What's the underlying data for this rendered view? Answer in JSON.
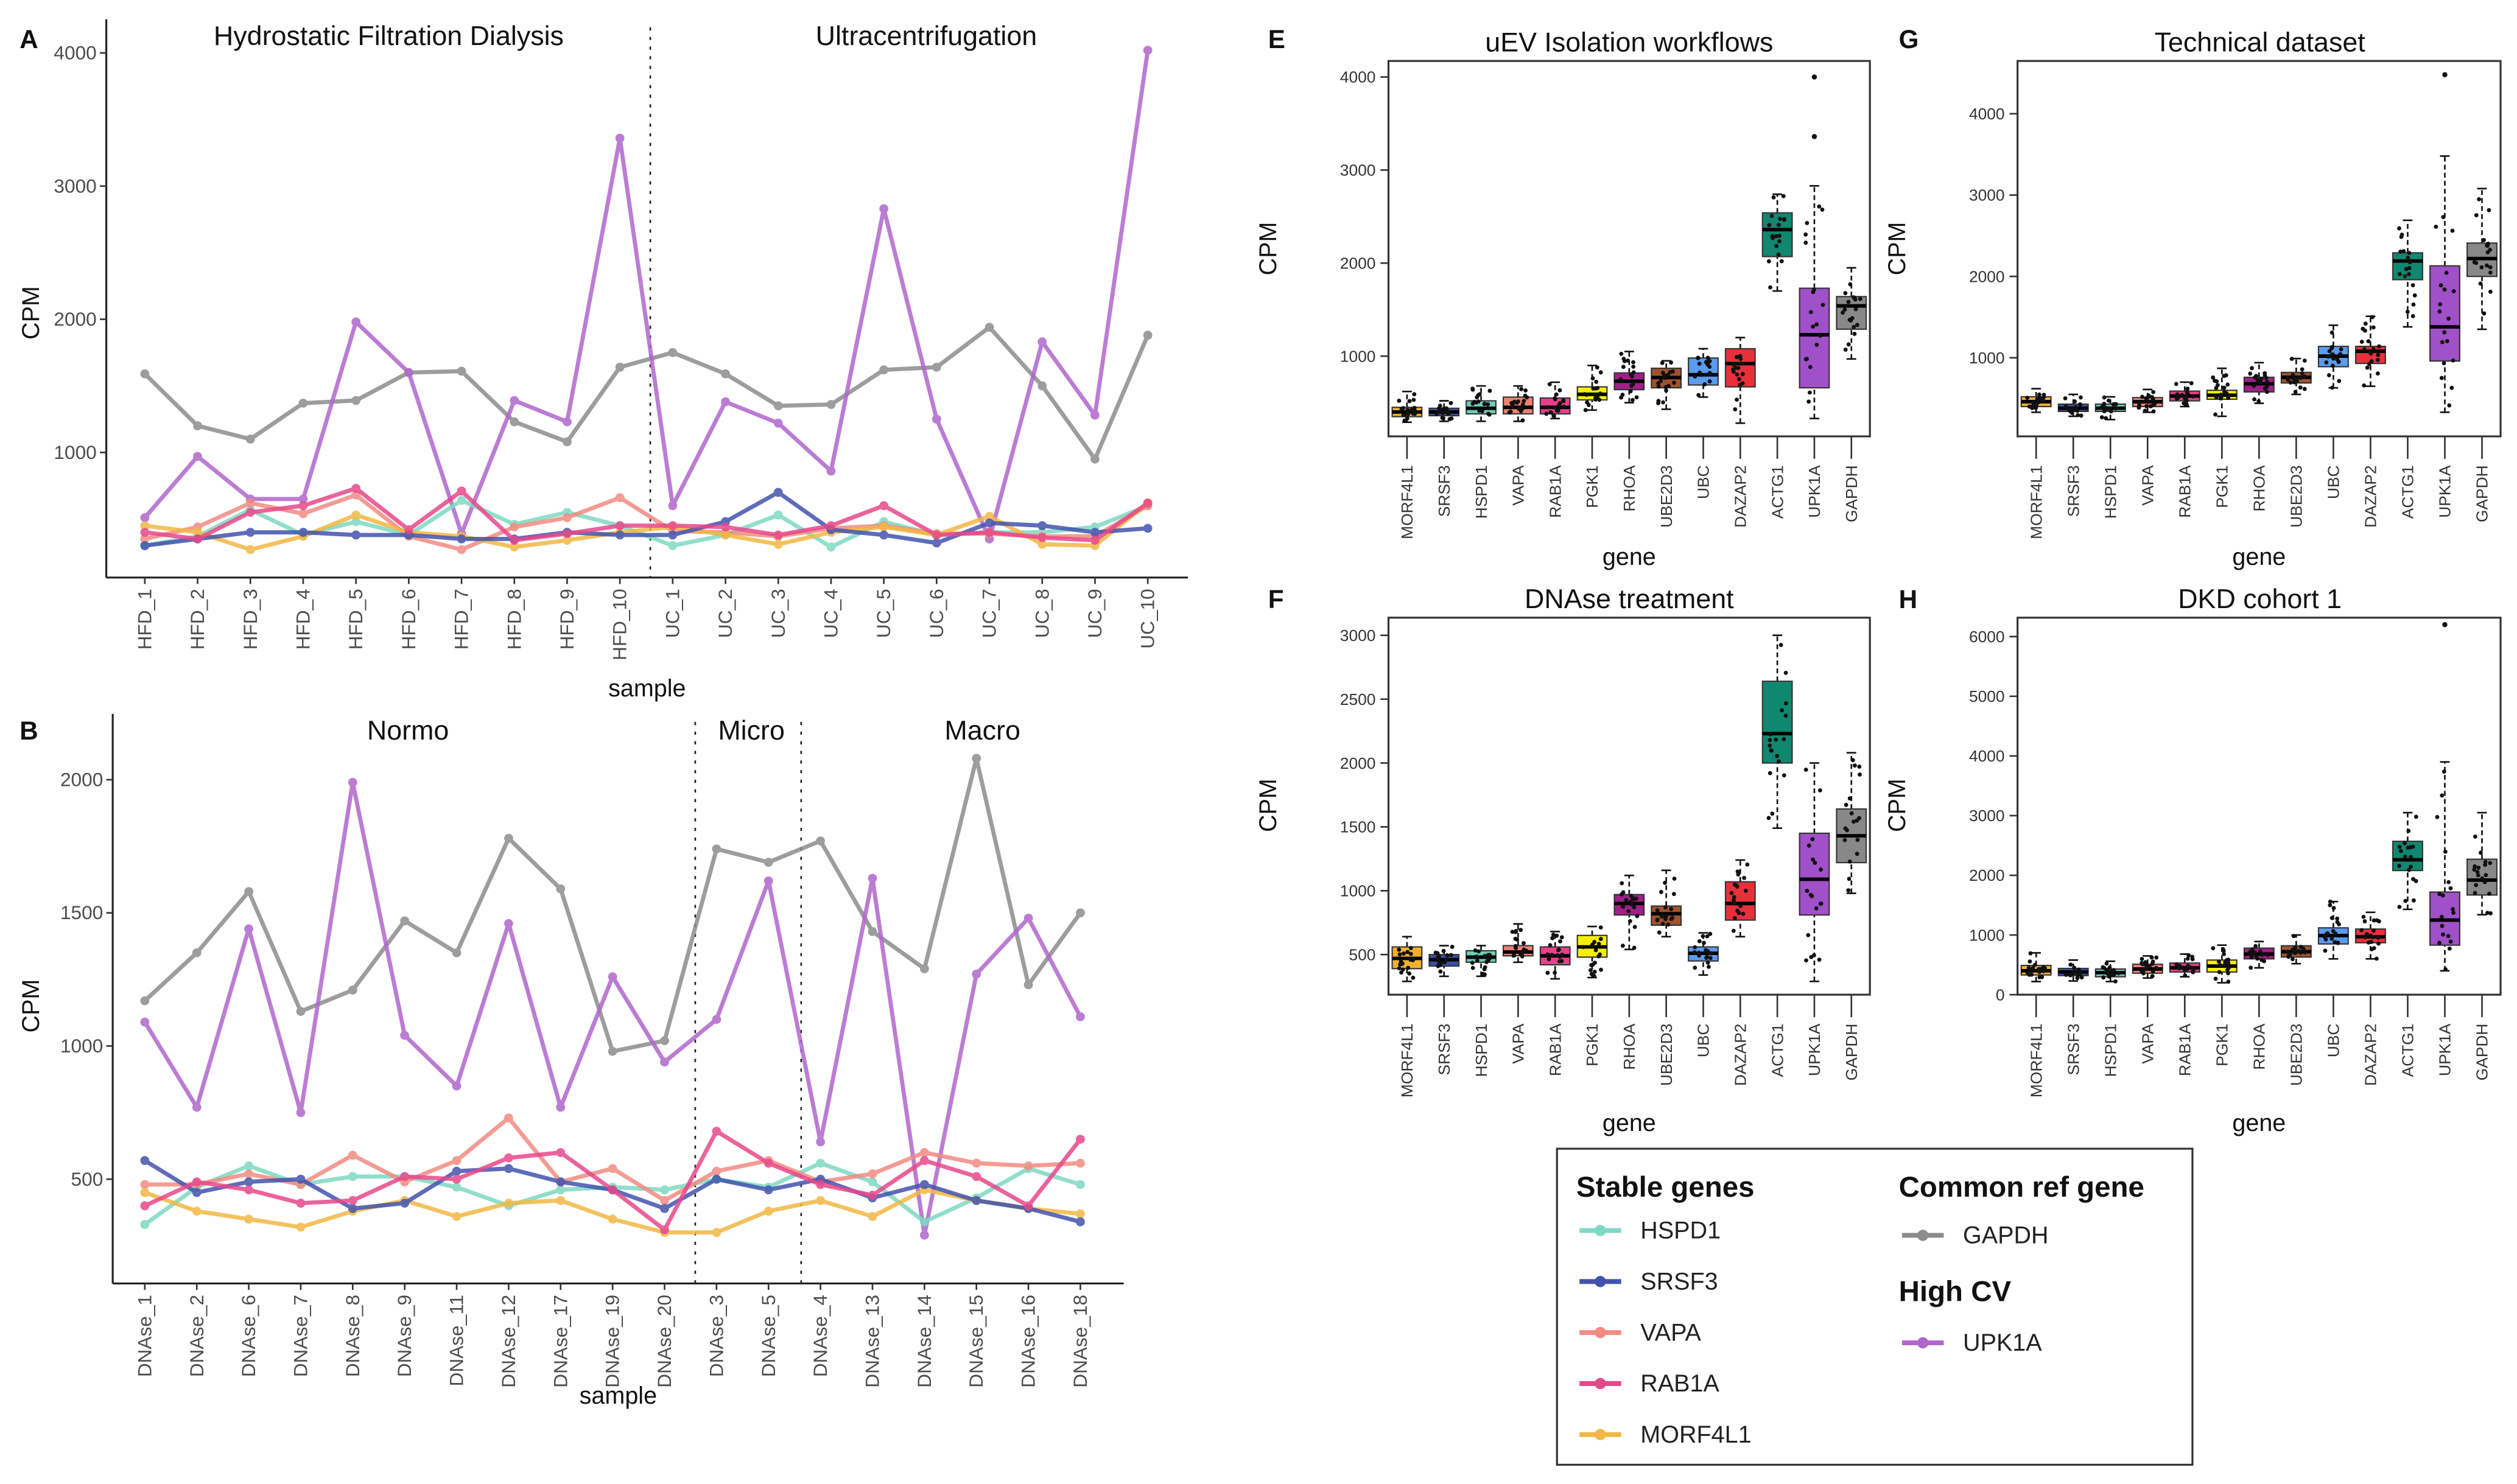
{
  "legend": {
    "stable_title": "Stable genes",
    "stable": [
      {
        "name": "HSPD1",
        "color": "#7ED9C3"
      },
      {
        "name": "SRSF3",
        "color": "#4253AE"
      },
      {
        "name": "VAPA",
        "color": "#F28B82"
      },
      {
        "name": "RAB1A",
        "color": "#E8488A"
      },
      {
        "name": "MORF4L1",
        "color": "#F2B844"
      }
    ],
    "ref_title": "Common ref gene",
    "ref": [
      {
        "name": "GAPDH",
        "color": "#8C8C8C"
      }
    ],
    "highcv_title": "High CV",
    "highcv": [
      {
        "name": "UPK1A",
        "color": "#B066CC"
      }
    ]
  },
  "chart_data": [
    {
      "type": "line",
      "panel": "A",
      "ylabel": "CPM",
      "xlabel": "sample",
      "yticks": [
        1000,
        2000,
        3000,
        4000
      ],
      "groups": [
        {
          "label": "Hydrostatic Filtration Dialysis"
        },
        {
          "label": "Ultracentrifugation"
        }
      ],
      "categories": [
        "HFD_1",
        "HFD_2",
        "HFD_3",
        "HFD_4",
        "HFD_5",
        "HFD_6",
        "HFD_7",
        "HFD_8",
        "HFD_9",
        "HFD_10",
        "UC_1",
        "UC_2",
        "UC_3",
        "UC_4",
        "UC_5",
        "UC_6",
        "UC_7",
        "UC_8",
        "UC_9",
        "UC_10"
      ],
      "series": [
        {
          "name": "GAPDH",
          "values": [
            1590,
            1200,
            1100,
            1370,
            1390,
            1600,
            1610,
            1230,
            1080,
            1640,
            1750,
            1590,
            1350,
            1360,
            1620,
            1640,
            1940,
            1500,
            950,
            1880
          ]
        },
        {
          "name": "UPK1A",
          "values": [
            510,
            970,
            650,
            650,
            1980,
            1600,
            390,
            1390,
            1230,
            3360,
            600,
            1380,
            1220,
            860,
            2830,
            1250,
            350,
            1830,
            1280,
            4020
          ]
        },
        {
          "name": "HSPD1",
          "values": [
            300,
            370,
            570,
            380,
            480,
            380,
            640,
            460,
            550,
            450,
            300,
            380,
            530,
            290,
            480,
            380,
            400,
            400,
            440,
            600
          ]
        },
        {
          "name": "VAPA",
          "values": [
            350,
            440,
            620,
            540,
            680,
            370,
            270,
            440,
            510,
            660,
            410,
            400,
            370,
            430,
            450,
            390,
            390,
            370,
            370,
            600
          ]
        },
        {
          "name": "MORF4L1",
          "values": [
            450,
            400,
            270,
            370,
            530,
            400,
            370,
            290,
            340,
            400,
            440,
            380,
            310,
            400,
            440,
            380,
            520,
            310,
            300,
            620
          ]
        },
        {
          "name": "SRSF3",
          "values": [
            300,
            350,
            400,
            400,
            380,
            380,
            350,
            350,
            400,
            380,
            380,
            480,
            700,
            420,
            380,
            320,
            470,
            450,
            400,
            430
          ]
        },
        {
          "name": "RAB1A",
          "values": [
            400,
            350,
            550,
            600,
            730,
            420,
            710,
            340,
            390,
            450,
            450,
            440,
            380,
            450,
            600,
            380,
            400,
            360,
            340,
            620
          ]
        }
      ]
    },
    {
      "type": "line",
      "panel": "B",
      "ylabel": "CPM",
      "xlabel": "sample",
      "yticks": [
        500,
        1000,
        1500,
        2000
      ],
      "groups": [
        {
          "label": "Normo"
        },
        {
          "label": "Micro"
        },
        {
          "label": "Macro"
        }
      ],
      "categories": [
        "DNAse_1",
        "DNAse_2",
        "DNAse_6",
        "DNAse_7",
        "DNAse_8",
        "DNAse_9",
        "DNAse_11",
        "DNAse_12",
        "DNAse_17",
        "DNAse_19",
        "DNAse_20",
        "DNAse_3",
        "DNAse_5",
        "DNAse_4",
        "DNAse_13",
        "DNAse_14",
        "DNAse_15",
        "DNAse_16",
        "DNAse_18"
      ],
      "series": [
        {
          "name": "GAPDH",
          "values": [
            1170,
            1350,
            1580,
            1130,
            1210,
            1470,
            1350,
            1780,
            1590,
            980,
            1020,
            1740,
            1690,
            1770,
            1430,
            1290,
            2080,
            1230,
            1500
          ]
        },
        {
          "name": "UPK1A",
          "values": [
            1090,
            770,
            1440,
            750,
            1990,
            1040,
            850,
            1460,
            770,
            1260,
            940,
            1100,
            1620,
            640,
            1630,
            290,
            1270,
            1480,
            1110
          ]
        },
        {
          "name": "HSPD1",
          "values": [
            330,
            470,
            550,
            480,
            510,
            510,
            470,
            400,
            460,
            470,
            460,
            500,
            470,
            560,
            490,
            340,
            430,
            540,
            480
          ]
        },
        {
          "name": "VAPA",
          "values": [
            480,
            480,
            520,
            480,
            590,
            490,
            570,
            730,
            490,
            540,
            420,
            530,
            570,
            490,
            520,
            600,
            560,
            550,
            560
          ]
        },
        {
          "name": "MORF4L1",
          "values": [
            450,
            380,
            350,
            320,
            380,
            420,
            360,
            410,
            420,
            350,
            300,
            300,
            380,
            420,
            360,
            460,
            420,
            390,
            370
          ]
        },
        {
          "name": "SRSF3",
          "values": [
            570,
            450,
            490,
            500,
            390,
            410,
            530,
            540,
            490,
            460,
            390,
            500,
            460,
            500,
            430,
            480,
            420,
            390,
            340
          ]
        },
        {
          "name": "RAB1A",
          "values": [
            400,
            490,
            460,
            410,
            420,
            510,
            500,
            580,
            600,
            460,
            310,
            680,
            560,
            480,
            440,
            570,
            510,
            400,
            650
          ]
        }
      ]
    },
    {
      "type": "box",
      "panel": "E",
      "title": "uEV Isolation workflows",
      "ylabel": "CPM",
      "xlabel": "gene",
      "yticks": [
        1000,
        2000,
        3000,
        4000
      ],
      "categories": [
        "MORF4L1",
        "SRSF3",
        "HSPD1",
        "VAPA",
        "RAB1A",
        "PGK1",
        "RHOA",
        "UBE2D3",
        "UBC",
        "DAZAP2",
        "ACTG1",
        "UPK1A",
        "GAPDH"
      ],
      "colors": [
        "#F0B030",
        "#3A4FA8",
        "#6DCFB8",
        "#F08070",
        "#E8408A",
        "#F5F000",
        "#A0208A",
        "#A0522D",
        "#5B9BF0",
        "#E8303A",
        "#108870",
        "#A050C8",
        "#888888"
      ],
      "stats": [
        [
          290,
          350,
          400,
          450,
          620
        ],
        [
          300,
          360,
          400,
          440,
          520
        ],
        [
          300,
          380,
          440,
          520,
          680
        ],
        [
          300,
          380,
          450,
          560,
          680
        ],
        [
          330,
          380,
          450,
          550,
          720
        ],
        [
          420,
          530,
          590,
          670,
          900
        ],
        [
          500,
          640,
          730,
          820,
          1050
        ],
        [
          430,
          660,
          770,
          870,
          950
        ],
        [
          560,
          690,
          800,
          980,
          1080
        ],
        [
          280,
          670,
          920,
          1080,
          1200
        ],
        [
          1700,
          2070,
          2360,
          2540,
          2740
        ],
        [
          330,
          660,
          1230,
          1730,
          2830
        ],
        [
          970,
          1290,
          1540,
          1640,
          1950
        ]
      ],
      "outliers": [
        [],
        [],
        [],
        [],
        [],
        [],
        [],
        [],
        [],
        [],
        [],
        [
          3360,
          4000
        ],
        []
      ]
    },
    {
      "type": "box",
      "panel": "G",
      "title": "Technical dataset",
      "ylabel": "CPM",
      "xlabel": "gene",
      "yticks": [
        1000,
        2000,
        3000,
        4000
      ],
      "categories": [
        "MORF4L1",
        "SRSF3",
        "HSPD1",
        "VAPA",
        "RAB1A",
        "PGK1",
        "RHOA",
        "UBE2D3",
        "UBC",
        "DAZAP2",
        "ACTG1",
        "UPK1A",
        "GAPDH"
      ],
      "colors": [
        "#F0B030",
        "#3A4FA8",
        "#6DCFB8",
        "#F08070",
        "#E8408A",
        "#F5F000",
        "#A0208A",
        "#A0522D",
        "#5B9BF0",
        "#E8303A",
        "#108870",
        "#A050C8",
        "#888888"
      ],
      "stats": [
        [
          330,
          400,
          460,
          520,
          620
        ],
        [
          280,
          340,
          380,
          430,
          550
        ],
        [
          240,
          340,
          380,
          430,
          520
        ],
        [
          330,
          400,
          460,
          510,
          610
        ],
        [
          400,
          470,
          530,
          590,
          700
        ],
        [
          280,
          490,
          540,
          600,
          870
        ],
        [
          440,
          580,
          680,
          760,
          940
        ],
        [
          550,
          690,
          760,
          820,
          990
        ],
        [
          630,
          890,
          1020,
          1140,
          1400
        ],
        [
          650,
          930,
          1080,
          1140,
          1510
        ],
        [
          1380,
          1960,
          2190,
          2290,
          2690
        ],
        [
          330,
          960,
          1380,
          2130,
          3480
        ],
        [
          1350,
          2000,
          2220,
          2410,
          3080
        ]
      ],
      "outliers": [
        [],
        [],
        [],
        [],
        [],
        [],
        [],
        [],
        [],
        [],
        [],
        [
          4480
        ],
        []
      ]
    },
    {
      "type": "box",
      "panel": "F",
      "title": "DNAse treatment",
      "ylabel": "CPM",
      "xlabel": "gene",
      "yticks": [
        500,
        1000,
        1500,
        2000,
        2500,
        3000
      ],
      "categories": [
        "MORF4L1",
        "SRSF3",
        "HSPD1",
        "VAPA",
        "RAB1A",
        "PGK1",
        "RHOA",
        "UBE2D3",
        "UBC",
        "DAZAP2",
        "ACTG1",
        "UPK1A",
        "GAPDH"
      ],
      "colors": [
        "#F0B030",
        "#3A4FA8",
        "#6DCFB8",
        "#F08070",
        "#E8408A",
        "#F5F000",
        "#A0208A",
        "#A0522D",
        "#5B9BF0",
        "#E8303A",
        "#108870",
        "#A050C8",
        "#888888"
      ],
      "stats": [
        [
          290,
          390,
          470,
          560,
          640
        ],
        [
          330,
          410,
          460,
          500,
          570
        ],
        [
          330,
          440,
          480,
          530,
          570
        ],
        [
          440,
          490,
          520,
          570,
          740
        ],
        [
          310,
          420,
          490,
          560,
          680
        ],
        [
          320,
          480,
          560,
          650,
          720
        ],
        [
          540,
          810,
          900,
          970,
          1120
        ],
        [
          640,
          730,
          820,
          880,
          1160
        ],
        [
          340,
          450,
          510,
          560,
          670
        ],
        [
          640,
          770,
          900,
          1070,
          1240
        ],
        [
          1490,
          2000,
          2230,
          2640,
          3000
        ],
        [
          290,
          810,
          1090,
          1450,
          2000
        ],
        [
          980,
          1220,
          1430,
          1640,
          2080
        ]
      ],
      "outliers": [
        [],
        [],
        [],
        [],
        [],
        [],
        [],
        [],
        [],
        [],
        [],
        [],
        []
      ]
    },
    {
      "type": "box",
      "panel": "H",
      "title": "DKD cohort 1",
      "ylabel": "CPM",
      "xlabel": "gene",
      "yticks": [
        0,
        1000,
        2000,
        3000,
        4000,
        5000,
        6000
      ],
      "categories": [
        "MORF4L1",
        "SRSF3",
        "HSPD1",
        "VAPA",
        "RAB1A",
        "PGK1",
        "RHOA",
        "UBE2D3",
        "UBC",
        "DAZAP2",
        "ACTG1",
        "UPK1A",
        "GAPDH"
      ],
      "colors": [
        "#F0B030",
        "#3A4FA8",
        "#6DCFB8",
        "#F08070",
        "#E8408A",
        "#F5F000",
        "#A0208A",
        "#A0522D",
        "#5B9BF0",
        "#E8303A",
        "#108870",
        "#A050C8",
        "#888888"
      ],
      "stats": [
        [
          220,
          330,
          400,
          490,
          700
        ],
        [
          230,
          320,
          380,
          440,
          580
        ],
        [
          220,
          300,
          370,
          430,
          560
        ],
        [
          280,
          360,
          430,
          510,
          650
        ],
        [
          300,
          380,
          450,
          530,
          680
        ],
        [
          200,
          380,
          480,
          580,
          830
        ],
        [
          450,
          600,
          680,
          780,
          890
        ],
        [
          520,
          630,
          720,
          820,
          1000
        ],
        [
          600,
          850,
          990,
          1120,
          1560
        ],
        [
          600,
          870,
          970,
          1100,
          1380
        ],
        [
          1430,
          2080,
          2260,
          2570,
          3050
        ],
        [
          400,
          830,
          1250,
          1720,
          3900
        ],
        [
          1340,
          1670,
          1920,
          2270,
          3050
        ]
      ],
      "outliers": [
        [],
        [],
        [],
        [],
        [],
        [],
        [],
        [],
        [],
        [],
        [],
        [
          6200
        ],
        []
      ]
    }
  ]
}
